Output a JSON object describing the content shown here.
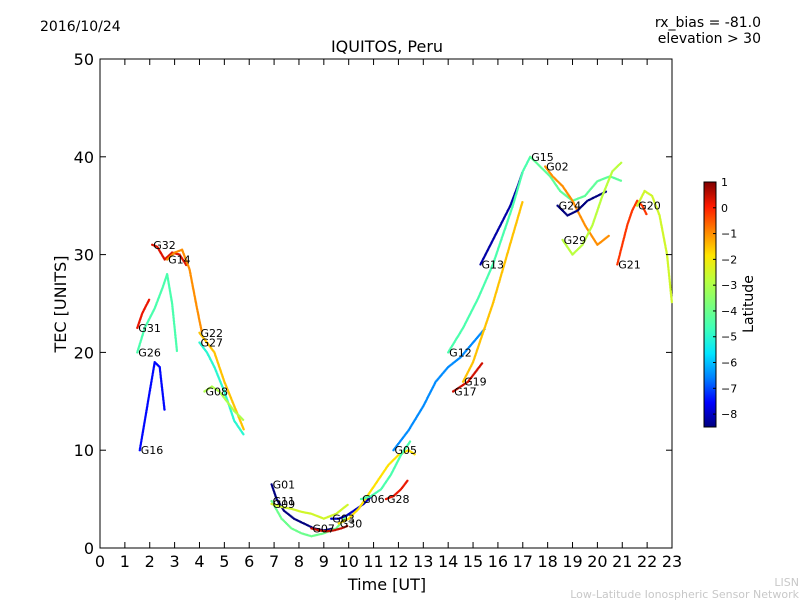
{
  "header": {
    "date": "2016/10/24",
    "bias_line": "rx_bias = -81.0",
    "elevation_line": "elevation > 30"
  },
  "footer": {
    "org_short": "LISN",
    "org_full": "Low-Latitude Ionospheric Sensor Network"
  },
  "chart_data": {
    "type": "scatter",
    "title": "IQUITOS, Peru",
    "xlabel": "Time [UT]",
    "ylabel": "TEC [UNITS]",
    "xlim": [
      0,
      23
    ],
    "ylim": [
      0,
      50
    ],
    "xticks": [
      0,
      1,
      2,
      3,
      4,
      5,
      6,
      7,
      8,
      9,
      10,
      11,
      12,
      13,
      14,
      15,
      16,
      17,
      18,
      19,
      20,
      21,
      22,
      23
    ],
    "yticks": [
      0,
      10,
      20,
      30,
      40,
      50
    ],
    "grid": false,
    "colorbar": {
      "label": "Latitude",
      "min": -8.5,
      "max": 1,
      "ticks": [
        1,
        0,
        -1,
        -2,
        -3,
        -4,
        -5,
        -6,
        -7,
        -8
      ],
      "colormap": [
        "#00007f",
        "#0000ff",
        "#0080ff",
        "#00e5ff",
        "#3dffba",
        "#7bff7b",
        "#baff3d",
        "#ffe600",
        "#ff8400",
        "#ff1a00",
        "#7f0000"
      ]
    },
    "series": [
      {
        "name": "G32",
        "lat": 0.3,
        "x": [
          2.1,
          2.3,
          2.6,
          2.9,
          3.2,
          3.5
        ],
        "y": [
          31.0,
          30.8,
          29.5,
          30.2,
          30.0,
          28.8
        ]
      },
      {
        "name": "G14",
        "lat": -1.0,
        "x": [
          2.7,
          3.0,
          3.3,
          3.6,
          3.9,
          4.1
        ],
        "y": [
          29.5,
          30.2,
          30.5,
          28.5,
          24.5,
          22.0
        ]
      },
      {
        "name": "G31",
        "lat": 0.2,
        "x": [
          1.5,
          1.7,
          1.9,
          2.0
        ],
        "y": [
          22.5,
          24.0,
          25.0,
          25.5
        ]
      },
      {
        "name": "G26",
        "lat": -4.5,
        "x": [
          1.5,
          1.8,
          2.2,
          2.5,
          2.7,
          2.9,
          3.0,
          3.1
        ],
        "y": [
          20.0,
          22.5,
          24.5,
          26.5,
          28.0,
          25.0,
          22.5,
          20.0
        ]
      },
      {
        "name": "G16",
        "lat": -7.5,
        "x": [
          1.6,
          1.8,
          2.0,
          2.2,
          2.4,
          2.6
        ],
        "y": [
          10.0,
          13.0,
          16.0,
          19.0,
          18.5,
          14.0
        ]
      },
      {
        "name": "G22",
        "lat": -1.5,
        "x": [
          4.0,
          4.3,
          4.6,
          5.0,
          5.4,
          5.8
        ],
        "y": [
          22.0,
          21.0,
          20.0,
          17.0,
          14.5,
          12.0
        ]
      },
      {
        "name": "G27",
        "lat": -5.0,
        "x": [
          4.0,
          4.3,
          4.6,
          5.0,
          5.4,
          5.8
        ],
        "y": [
          21.0,
          20.0,
          18.5,
          16.0,
          13.0,
          11.5
        ]
      },
      {
        "name": "G08",
        "lat": -3.0,
        "x": [
          4.2,
          4.5,
          4.8,
          5.1,
          5.4,
          5.8
        ],
        "y": [
          16.0,
          16.5,
          16.0,
          15.0,
          14.0,
          13.0
        ]
      },
      {
        "name": "G01",
        "lat": -8.5,
        "x": [
          6.9,
          7.1,
          7.4,
          7.8,
          8.2,
          8.6,
          9.0,
          9.4
        ],
        "y": [
          6.5,
          5.0,
          3.8,
          3.0,
          2.5,
          2.0,
          1.8,
          2.0
        ]
      },
      {
        "name": "G11",
        "lat": -4.0,
        "x": [
          6.9,
          7.3,
          7.7,
          8.1,
          8.5,
          9.0,
          9.5,
          10.0
        ],
        "y": [
          4.8,
          3.0,
          2.0,
          1.5,
          1.2,
          1.5,
          2.0,
          3.5
        ]
      },
      {
        "name": "G09",
        "lat": -2.5,
        "x": [
          6.9,
          7.3,
          7.7,
          8.1,
          8.5,
          9.0,
          9.5,
          10.0
        ],
        "y": [
          4.5,
          4.2,
          4.0,
          3.7,
          3.5,
          3.0,
          3.5,
          4.5
        ]
      },
      {
        "name": "G07",
        "lat": 0.5,
        "x": [
          8.5,
          8.8,
          9.1,
          9.4,
          9.7,
          10.0
        ],
        "y": [
          2.0,
          1.8,
          1.7,
          1.8,
          2.0,
          2.3
        ]
      },
      {
        "name": "G03",
        "lat": -8.0,
        "x": [
          9.3,
          9.6,
          9.9,
          10.2,
          10.6,
          11.0
        ],
        "y": [
          3.0,
          3.0,
          3.3,
          3.8,
          4.5,
          5.5
        ]
      },
      {
        "name": "G30",
        "lat": -1.8,
        "x": [
          9.6,
          10.0,
          10.4,
          10.8,
          11.2,
          11.6,
          12.0,
          12.4,
          12.7
        ],
        "y": [
          2.5,
          3.0,
          4.0,
          5.5,
          7.0,
          8.5,
          9.5,
          10.0,
          9.5
        ]
      },
      {
        "name": "G06",
        "lat": -4.5,
        "x": [
          10.5,
          10.9,
          11.3,
          11.7,
          12.1,
          12.5
        ],
        "y": [
          5.0,
          5.3,
          6.0,
          7.5,
          9.5,
          11.0
        ]
      },
      {
        "name": "G28",
        "lat": 0.2,
        "x": [
          11.5,
          11.8,
          12.1,
          12.4
        ],
        "y": [
          5.0,
          5.3,
          6.0,
          7.0
        ]
      },
      {
        "name": "G05",
        "lat": -6.5,
        "x": [
          11.8,
          12.4,
          13.0,
          13.5,
          14.0,
          14.5,
          15.0,
          15.5
        ],
        "y": [
          10.0,
          12.0,
          14.5,
          17.0,
          18.5,
          19.5,
          21.0,
          22.5
        ]
      },
      {
        "name": "G19",
        "lat": -1.5,
        "x": [
          14.6,
          15.0,
          15.4,
          15.8,
          16.2,
          16.6,
          17.0
        ],
        "y": [
          17.0,
          19.0,
          22.0,
          25.0,
          28.5,
          32.0,
          35.5
        ]
      },
      {
        "name": "G17",
        "lat": 0.4,
        "x": [
          14.2,
          14.5,
          14.8,
          15.1,
          15.4
        ],
        "y": [
          16.0,
          16.5,
          17.0,
          18.0,
          19.0
        ]
      },
      {
        "name": "G13",
        "lat": -8.2,
        "x": [
          15.3,
          15.6,
          15.9,
          16.2,
          16.5,
          16.8,
          17.0
        ],
        "y": [
          29.0,
          30.5,
          32.0,
          33.5,
          35.0,
          37.0,
          38.5
        ]
      },
      {
        "name": "G12",
        "lat": -4.5,
        "x": [
          14.0,
          14.6,
          15.2,
          15.8,
          16.2,
          16.6,
          17.0,
          17.3
        ],
        "y": [
          20.0,
          22.5,
          25.5,
          29.0,
          32.0,
          35.0,
          38.5,
          40.0
        ]
      },
      {
        "name": "G15",
        "lat": -4.2,
        "x": [
          17.3,
          17.7,
          18.1,
          18.5,
          19.0,
          19.5,
          20.0,
          20.5,
          21.0
        ],
        "y": [
          40.0,
          39.0,
          38.0,
          36.5,
          35.5,
          36.0,
          37.5,
          38.0,
          37.5
        ]
      },
      {
        "name": "G02",
        "lat": -1.0,
        "x": [
          17.9,
          18.2,
          18.6,
          19.0,
          19.5,
          20.0,
          20.5
        ],
        "y": [
          39.0,
          38.0,
          37.0,
          35.5,
          33.0,
          31.0,
          32.0
        ]
      },
      {
        "name": "G24",
        "lat": -8.5,
        "x": [
          18.4,
          18.8,
          19.2,
          19.6,
          20.0,
          20.4
        ],
        "y": [
          35.0,
          34.0,
          34.5,
          35.5,
          36.0,
          36.5
        ]
      },
      {
        "name": "G29",
        "lat": -2.8,
        "x": [
          18.6,
          19.0,
          19.4,
          19.8,
          20.2,
          20.6,
          21.0
        ],
        "y": [
          31.5,
          30.0,
          31.0,
          33.0,
          36.0,
          38.5,
          39.5
        ]
      },
      {
        "name": "G21",
        "lat": -0.2,
        "x": [
          20.8,
          21.0,
          21.2,
          21.4,
          21.6,
          21.8,
          22.0
        ],
        "y": [
          29.0,
          31.0,
          33.0,
          34.5,
          35.5,
          35.0,
          34.0
        ]
      },
      {
        "name": "G20",
        "lat": -2.5,
        "x": [
          21.6,
          21.9,
          22.2,
          22.5,
          22.8,
          23.0
        ],
        "y": [
          35.0,
          36.5,
          36.0,
          34.0,
          30.0,
          25.0
        ]
      }
    ]
  }
}
